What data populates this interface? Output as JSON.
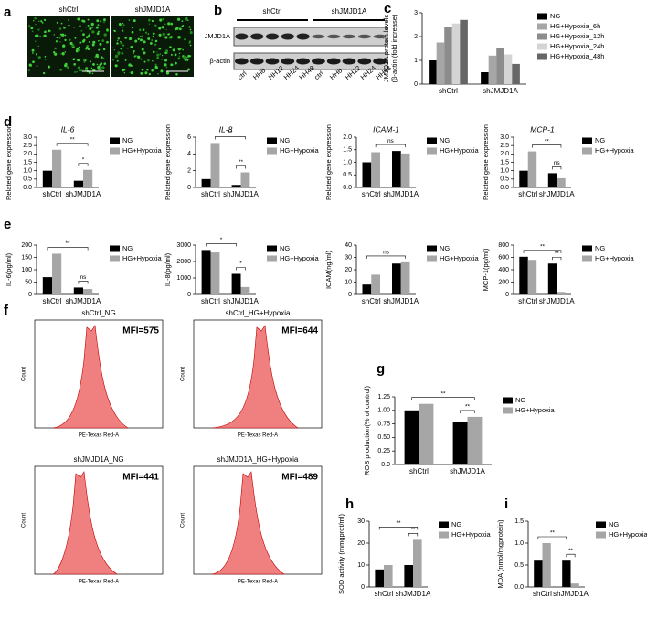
{
  "panel_labels": [
    "a",
    "b",
    "c",
    "d",
    "e",
    "f",
    "g",
    "h",
    "i"
  ],
  "panel_a": {
    "images": [
      "shCtrl",
      "shJMJD1A"
    ]
  },
  "panel_b": {
    "groups": [
      "shCtrl",
      "shJMJD1A"
    ],
    "proteins": [
      "JMJD1A",
      "β-actin"
    ],
    "lanes": [
      "ctrl",
      "HH6",
      "HH12",
      "HH24",
      "HH48",
      "ctrl",
      "HH6",
      "HH12",
      "HH24",
      "HH48"
    ]
  },
  "panel_f": {
    "x_label": "PE-Texas Red-A",
    "y_label": "Count",
    "plots": [
      {
        "title": "shCtrl_NG",
        "mfi": "MFI=575"
      },
      {
        "title": "shCtrl_HG+Hypoxia",
        "mfi": "MFI=644"
      },
      {
        "title": "shJMJD1A_NG",
        "mfi": "MFI=441"
      },
      {
        "title": "shJMJD1A_HG+Hypoxia",
        "mfi": "MFI=489"
      }
    ]
  },
  "chart_data": [
    {
      "type": "bar",
      "y_label": [
        "JMJD1A protein levels",
        "(β-actin (fold increase)"
      ],
      "categories": [
        "shCtrl",
        "shJMJD1A"
      ],
      "series": [
        {
          "name": "NG",
          "color": "#000000",
          "values": [
            1.0,
            0.5
          ]
        },
        {
          "name": "HG+Hypoxia_6h",
          "color": "#a6a6a6",
          "values": [
            1.75,
            1.2
          ]
        },
        {
          "name": "HG+Hypoxia_12h",
          "color": "#8c8c8c",
          "values": [
            2.4,
            1.5
          ]
        },
        {
          "name": "HG+Hypoxia_24h",
          "color": "#d4d4d4",
          "values": [
            2.55,
            1.25
          ]
        },
        {
          "name": "HG+Hypoxia_48h",
          "color": "#666666",
          "values": [
            2.7,
            0.85
          ]
        }
      ],
      "ylim": [
        0,
        3
      ],
      "yticks": [
        0,
        1,
        2,
        3
      ],
      "brackets": []
    },
    {
      "type": "bar",
      "title": "IL-6",
      "y_label": [
        "Related gene expression"
      ],
      "categories": [
        "shCtrl",
        "shJMJD1A"
      ],
      "series": [
        {
          "name": "NG",
          "color": "#000000",
          "values": [
            1.0,
            0.4
          ]
        },
        {
          "name": "HG+Hypoxia",
          "color": "#a6a6a6",
          "values": [
            2.25,
            1.05
          ]
        }
      ],
      "ylim": [
        0,
        3
      ],
      "yticks": [
        {
          "value": 0,
          "label": "0.0"
        },
        {
          "value": 0.5,
          "label": "0.5"
        },
        {
          "value": 1,
          "label": "1.0"
        },
        {
          "value": 1.5,
          "label": "1.5"
        },
        {
          "value": 2,
          "label": "2.0"
        },
        {
          "value": 2.5,
          "label": "2.5"
        },
        {
          "value": 3,
          "label": "3.0"
        }
      ],
      "brackets": [
        {
          "label": "*",
          "from": [
            "shJMJD1A",
            "NG"
          ],
          "to": [
            "shJMJD1A",
            "HG+Hypoxia"
          ]
        },
        {
          "label": "**",
          "from": [
            "shCtrl",
            "HG+Hypoxia"
          ],
          "to": [
            "shJMJD1A",
            "HG+Hypoxia"
          ]
        }
      ]
    },
    {
      "type": "bar",
      "title": "IL-8",
      "y_label": [
        "Related gene expression"
      ],
      "categories": [
        "shCtrl",
        "shJMJD1A"
      ],
      "series": [
        {
          "name": "NG",
          "color": "#000000",
          "values": [
            1.0,
            0.3
          ]
        },
        {
          "name": "HG+Hypoxia",
          "color": "#a6a6a6",
          "values": [
            5.3,
            1.8
          ]
        }
      ],
      "ylim": [
        0,
        6
      ],
      "yticks": [
        0,
        2,
        4,
        6
      ],
      "brackets": [
        {
          "label": "**",
          "from": [
            "shJMJD1A",
            "NG"
          ],
          "to": [
            "shJMJD1A",
            "HG+Hypoxia"
          ]
        },
        {
          "label": "**",
          "from": [
            "shCtrl",
            "HG+Hypoxia"
          ],
          "to": [
            "shJMJD1A",
            "HG+Hypoxia"
          ]
        }
      ]
    },
    {
      "type": "bar",
      "title": "ICAM-1",
      "y_label": [
        "Related gene expression"
      ],
      "categories": [
        "shCtrl",
        "shJMJD1A"
      ],
      "series": [
        {
          "name": "NG",
          "color": "#000000",
          "values": [
            1.0,
            1.45
          ]
        },
        {
          "name": "HG+Hypoxia",
          "color": "#a6a6a6",
          "values": [
            1.4,
            1.35
          ]
        }
      ],
      "ylim": [
        0,
        2
      ],
      "yticks": [
        {
          "value": 0,
          "label": "0.0"
        },
        {
          "value": 0.5,
          "label": "0.5"
        },
        {
          "value": 1,
          "label": "1.0"
        },
        {
          "value": 1.5,
          "label": "1.5"
        },
        {
          "value": 2,
          "label": "2.0"
        }
      ],
      "brackets": [
        {
          "label": "ns",
          "from": [
            "shCtrl",
            "HG+Hypoxia"
          ],
          "to": [
            "shJMJD1A",
            "HG+Hypoxia"
          ]
        }
      ]
    },
    {
      "type": "bar",
      "title": "MCP-1",
      "y_label": [
        "Related gene expression"
      ],
      "categories": [
        "shCtrl",
        "shJMJD1A"
      ],
      "series": [
        {
          "name": "NG",
          "color": "#000000",
          "values": [
            1.0,
            0.85
          ]
        },
        {
          "name": "HG+Hypoxia",
          "color": "#a6a6a6",
          "values": [
            2.15,
            0.55
          ]
        }
      ],
      "ylim": [
        0,
        3
      ],
      "yticks": [
        {
          "value": 0,
          "label": "0.0"
        },
        {
          "value": 0.5,
          "label": "0.5"
        },
        {
          "value": 1,
          "label": "1.0"
        },
        {
          "value": 1.5,
          "label": "1.5"
        },
        {
          "value": 2,
          "label": "2.0"
        },
        {
          "value": 2.5,
          "label": "2.5"
        },
        {
          "value": 3,
          "label": "3.0"
        }
      ],
      "brackets": [
        {
          "label": "ns",
          "from": [
            "shJMJD1A",
            "NG"
          ],
          "to": [
            "shJMJD1A",
            "HG+Hypoxia"
          ]
        },
        {
          "label": "**",
          "from": [
            "shCtrl",
            "HG+Hypoxia"
          ],
          "to": [
            "shJMJD1A",
            "HG+Hypoxia"
          ]
        }
      ]
    },
    {
      "type": "bar",
      "y_label": [
        "IL-6(pg/ml)"
      ],
      "categories": [
        "shCtrl",
        "shJMJD1A"
      ],
      "series": [
        {
          "name": "NG",
          "color": "#000000",
          "values": [
            70,
            28
          ]
        },
        {
          "name": "HG+Hypoxia",
          "color": "#a6a6a6",
          "values": [
            165,
            22
          ]
        }
      ],
      "ylim": [
        0,
        200
      ],
      "yticks": [
        0,
        50,
        100,
        150,
        200
      ],
      "brackets": [
        {
          "label": "ns",
          "from": [
            "shJMJD1A",
            "NG"
          ],
          "to": [
            "shJMJD1A",
            "HG+Hypoxia"
          ]
        },
        {
          "label": "**",
          "from": [
            "shCtrl",
            "NG"
          ],
          "to": [
            "shJMJD1A",
            "HG+Hypoxia"
          ]
        }
      ]
    },
    {
      "type": "bar",
      "y_label": [
        "IL-8(pg/ml)"
      ],
      "categories": [
        "shCtrl",
        "shJMJD1A"
      ],
      "series": [
        {
          "name": "NG",
          "color": "#000000",
          "values": [
            2700,
            1250
          ]
        },
        {
          "name": "HG+Hypoxia",
          "color": "#a6a6a6",
          "values": [
            2550,
            450
          ]
        }
      ],
      "ylim": [
        0,
        3000
      ],
      "yticks": [
        0,
        1000,
        2000,
        3000
      ],
      "brackets": [
        {
          "label": "*",
          "from": [
            "shJMJD1A",
            "NG"
          ],
          "to": [
            "shJMJD1A",
            "HG+Hypoxia"
          ]
        },
        {
          "label": "*",
          "from": [
            "shCtrl",
            "NG"
          ],
          "to": [
            "shJMJD1A",
            "NG"
          ]
        }
      ]
    },
    {
      "type": "bar",
      "y_label": [
        "ICAM(ng/ml)"
      ],
      "categories": [
        "shCtrl",
        "shJMJD1A"
      ],
      "series": [
        {
          "name": "NG",
          "color": "#000000",
          "values": [
            8,
            25
          ]
        },
        {
          "name": "HG+Hypoxia",
          "color": "#a6a6a6",
          "values": [
            16,
            26
          ]
        }
      ],
      "ylim": [
        0,
        40
      ],
      "yticks": [
        0,
        10,
        20,
        30,
        40
      ],
      "brackets": [
        {
          "label": "ns",
          "from": [
            "shCtrl",
            "NG"
          ],
          "to": [
            "shJMJD1A",
            "HG+Hypoxia"
          ]
        }
      ]
    },
    {
      "type": "bar",
      "y_label": [
        "MCP-1(pg/ml)"
      ],
      "categories": [
        "shCtrl",
        "shJMJD1A"
      ],
      "series": [
        {
          "name": "NG",
          "color": "#000000",
          "values": [
            610,
            500
          ]
        },
        {
          "name": "HG+Hypoxia",
          "color": "#a6a6a6",
          "values": [
            560,
            40
          ]
        }
      ],
      "ylim": [
        0,
        800
      ],
      "yticks": [
        0,
        200,
        400,
        600,
        800
      ],
      "brackets": [
        {
          "label": "**",
          "from": [
            "shJMJD1A",
            "NG"
          ],
          "to": [
            "shJMJD1A",
            "HG+Hypoxia"
          ]
        },
        {
          "label": "**",
          "from": [
            "shCtrl",
            "NG"
          ],
          "to": [
            "shJMJD1A",
            "HG+Hypoxia"
          ]
        }
      ]
    },
    {
      "type": "bar",
      "y_label": [
        "ROS production(% of control)"
      ],
      "categories": [
        "shCtrl",
        "shJMJD1A"
      ],
      "series": [
        {
          "name": "NG",
          "color": "#000000",
          "values": [
            1.0,
            0.78
          ]
        },
        {
          "name": "HG+Hypoxia",
          "color": "#a6a6a6",
          "values": [
            1.12,
            0.88
          ]
        }
      ],
      "ylim": [
        0,
        1.25
      ],
      "yticks": [
        {
          "value": 0,
          "label": "0.0"
        },
        0.25,
        {
          "value": 0.5,
          "label": "0.50"
        },
        0.75,
        {
          "value": 1,
          "label": "1.00"
        },
        1.25
      ],
      "brackets": [
        {
          "label": "**",
          "from": [
            "shJMJD1A",
            "NG"
          ],
          "to": [
            "shJMJD1A",
            "HG+Hypoxia"
          ]
        },
        {
          "label": "**",
          "from": [
            "shCtrl",
            "NG"
          ],
          "to": [
            "shJMJD1A",
            "HG+Hypoxia"
          ]
        }
      ]
    },
    {
      "type": "bar",
      "y_label": [
        "SOD activity (mmgprot/ml)"
      ],
      "categories": [
        "shCtrl",
        "shJMJD1A"
      ],
      "series": [
        {
          "name": "NG",
          "color": "#000000",
          "values": [
            8,
            10
          ]
        },
        {
          "name": "HG+Hypoxia",
          "color": "#a6a6a6",
          "values": [
            10,
            21.5
          ]
        }
      ],
      "ylim": [
        0,
        30
      ],
      "yticks": [
        0,
        10,
        20,
        30
      ],
      "brackets": [
        {
          "label": "**",
          "from": [
            "shJMJD1A",
            "NG"
          ],
          "to": [
            "shJMJD1A",
            "HG+Hypoxia"
          ]
        },
        {
          "label": "**",
          "from": [
            "shCtrl",
            "NG"
          ],
          "to": [
            "shJMJD1A",
            "HG+Hypoxia"
          ]
        }
      ]
    },
    {
      "type": "bar",
      "y_label": [
        "MDA (nmol/mgprotein)"
      ],
      "categories": [
        "shCtrl",
        "shJMJD1A"
      ],
      "series": [
        {
          "name": "NG",
          "color": "#000000",
          "values": [
            0.6,
            0.6
          ]
        },
        {
          "name": "HG+Hypoxia",
          "color": "#a6a6a6",
          "values": [
            1.0,
            0.08
          ]
        }
      ],
      "ylim": [
        0,
        1.5
      ],
      "yticks": [
        {
          "value": 0,
          "label": "0.0"
        },
        {
          "value": 0.5,
          "label": "0.5"
        },
        {
          "value": 1,
          "label": "1.0"
        },
        {
          "value": 1.5,
          "label": "1.5"
        }
      ],
      "brackets": [
        {
          "label": "**",
          "from": [
            "shJMJD1A",
            "NG"
          ],
          "to": [
            "shJMJD1A",
            "HG+Hypoxia"
          ]
        },
        {
          "label": "**",
          "from": [
            "shCtrl",
            "NG"
          ],
          "to": [
            "shJMJD1A",
            "NG"
          ]
        }
      ]
    }
  ]
}
